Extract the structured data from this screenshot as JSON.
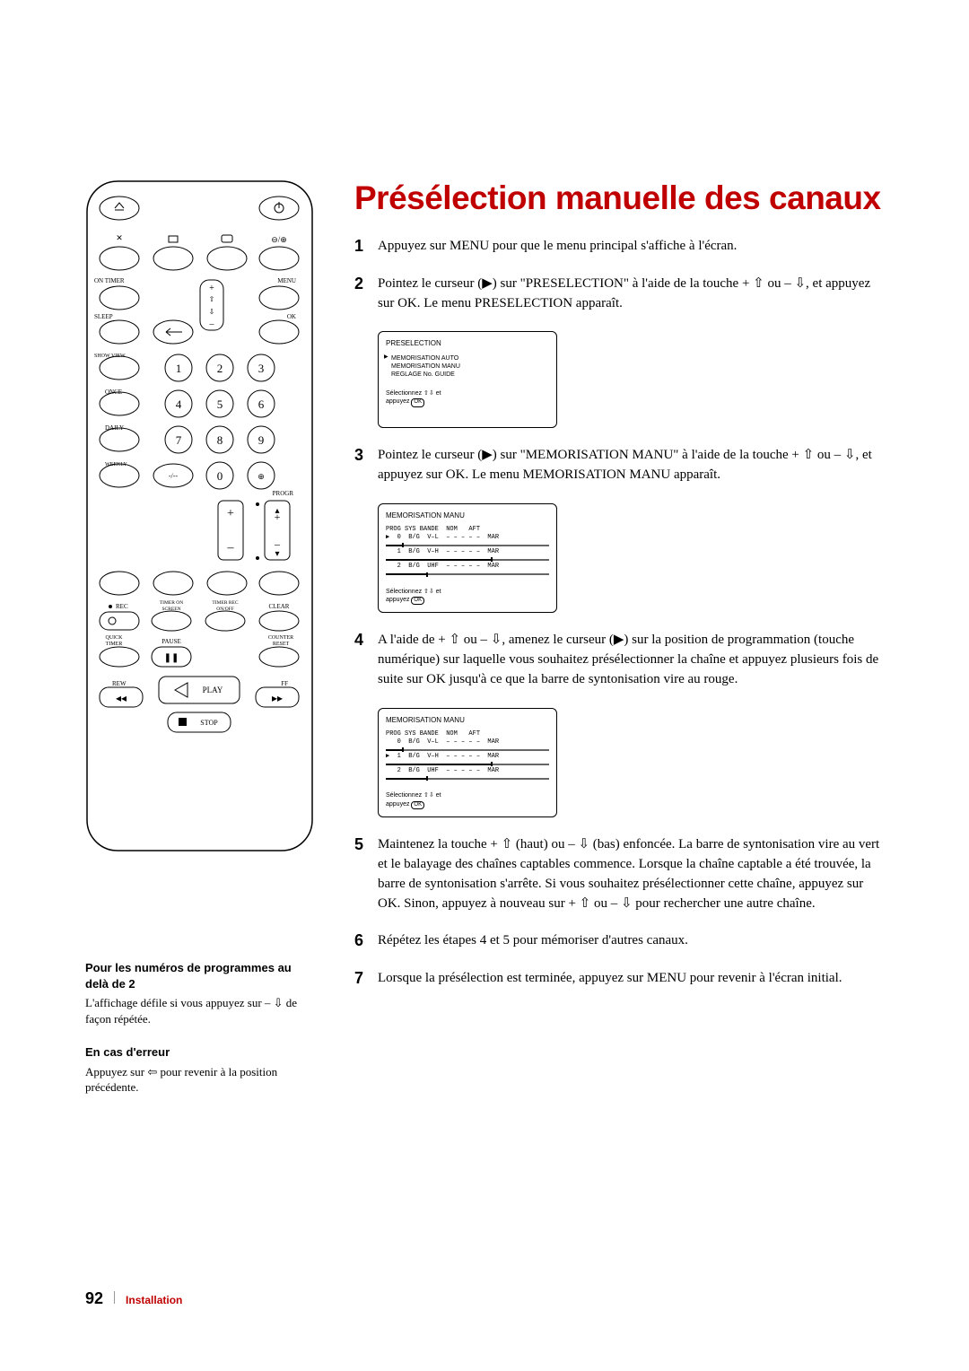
{
  "title": "Présélection manuelle des canaux",
  "steps": {
    "s1": {
      "num": "1",
      "text": "Appuyez sur MENU pour que le menu principal s'affiche à l'écran."
    },
    "s2": {
      "num": "2",
      "text": "Pointez le curseur (▶) sur \"PRESELECTION\" à l'aide de la touche + ⇧ ou – ⇩, et appuyez sur OK.\nLe menu PRESELECTION apparaît."
    },
    "s3": {
      "num": "3",
      "text": "Pointez le curseur (▶) sur \"MEMORISATION MANU\" à l'aide de la touche + ⇧ ou – ⇩, et appuyez sur OK.\nLe menu MEMORISATION MANU apparaît."
    },
    "s4": {
      "num": "4",
      "text": "A l'aide de + ⇧ ou – ⇩, amenez le curseur (▶) sur la position de programmation (touche numérique) sur laquelle vous souhaitez présélectionner la chaîne et appuyez plusieurs fois de suite sur OK jusqu'à ce que la barre de syntonisation vire au rouge."
    },
    "s5": {
      "num": "5",
      "text": "Maintenez la touche + ⇧ (haut) ou – ⇩ (bas) enfoncée.\nLa barre de syntonisation vire au vert et le balayage des chaînes captables commence. Lorsque la chaîne captable a été trouvée, la barre de syntonisation s'arrête. Si vous souhaitez présélectionner cette chaîne, appuyez sur OK. Sinon, appuyez à nouveau sur + ⇧ ou – ⇩ pour rechercher une autre chaîne."
    },
    "s6": {
      "num": "6",
      "text": "Répétez les étapes 4 et 5 pour mémoriser d'autres canaux."
    },
    "s7": {
      "num": "7",
      "text": "Lorsque la présélection est terminée, appuyez sur MENU pour revenir à l'écran initial."
    }
  },
  "screens": {
    "preselection": {
      "title": "PRESELECTION",
      "items": [
        "MEMORISATION AUTO",
        "MEMORISATION MANU",
        "REGLAGE No. GUIDE"
      ],
      "foot1": "Sélectionnez ⇧⇩ et",
      "foot2": "appuyez",
      "ok": "OK"
    },
    "memo1": {
      "title": "MEMORISATION MANU",
      "header": "PROG SYS BANDE  NOM   AFT",
      "rows": [
        {
          "pointed": true,
          "line": "  0  B/G  V–L  – – – – –  MAR",
          "fill": 0.1
        },
        {
          "pointed": false,
          "line": "  1  B/G  V–H  – – – – –  MAR",
          "fill": 0.65
        },
        {
          "pointed": false,
          "line": "  2  B/G  UHF  – – – – –  MAR",
          "fill": 0.25
        }
      ],
      "foot1": "Sélectionnez ⇧⇩ et",
      "foot2": "appuyez",
      "ok": "OK"
    },
    "memo2": {
      "title": "MEMORISATION MANU",
      "header": "PROG SYS BANDE  NOM   AFT",
      "rows": [
        {
          "pointed": false,
          "line": "  0  B/G  V–L  – – – – –  MAR",
          "fill": 0.1
        },
        {
          "pointed": true,
          "line": "  1  B/G  V–H  – – – – –  MAR",
          "fill": 0.65
        },
        {
          "pointed": false,
          "line": "  2  B/G  UHF  – – – – –  MAR",
          "fill": 0.25
        }
      ],
      "foot1": "Sélectionnez ⇧⇩ et",
      "foot2": "appuyez",
      "ok": "OK"
    }
  },
  "sidebar": {
    "note1_heading": "Pour les numéros de programmes au delà de 2",
    "note1_body": "L'affichage défile si vous appuyez sur – ⇩ de façon répétée.",
    "note2_heading": "En cas d'erreur",
    "note2_body": "Appuyez sur ⇦ pour revenir à la position précédente."
  },
  "footer": {
    "page": "92",
    "section": "Installation"
  },
  "remote": {
    "labels": {
      "on_timer": "ON TIMER",
      "menu": "MENU",
      "sleep": "SLEEP",
      "ok": "OK",
      "show_view": "SHOW VIEW",
      "once": "ONCE",
      "daily": "DAILY",
      "weekly": "WEEKLY",
      "progr": "PROGR",
      "rec": "REC",
      "timer_on_screen": "TIMER ON\nSCREEN",
      "timer_rec_onoff": "TIMER REC\nON/OFF",
      "clear": "CLEAR",
      "quick_timer": "QUICK\nTIMER",
      "pause": "PAUSE",
      "counter_reset": "COUNTER\nRESET",
      "play": "PLAY",
      "rew": "REW",
      "ff": "FF",
      "stop": "STOP"
    }
  }
}
